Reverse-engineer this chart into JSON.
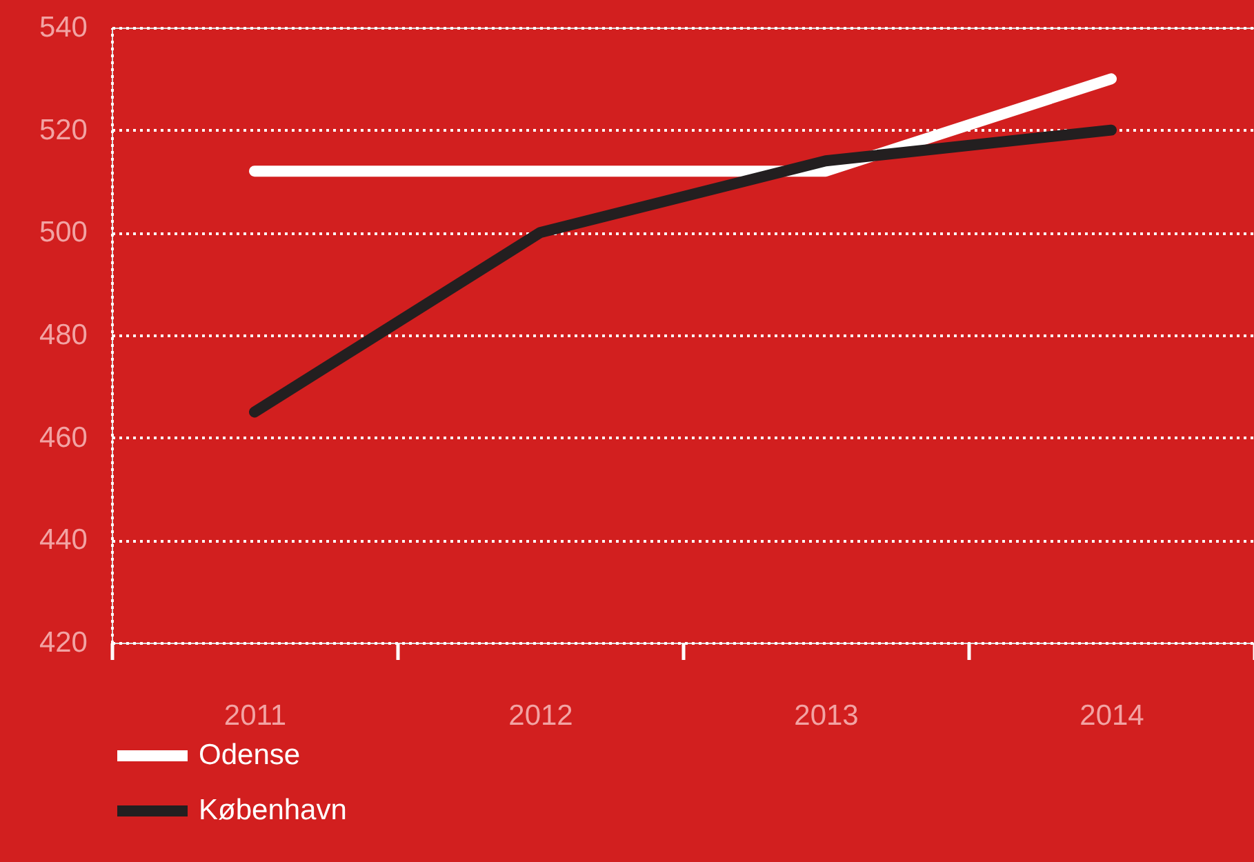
{
  "chart_data": {
    "type": "line",
    "categories": [
      "2011",
      "2012",
      "2013",
      "2014"
    ],
    "series": [
      {
        "name": "Odense",
        "color": "#ffffff",
        "values": [
          512,
          512,
          512,
          530
        ]
      },
      {
        "name": "København",
        "color": "#231f20",
        "values": [
          465,
          500,
          514,
          520
        ]
      }
    ],
    "ylim": [
      420,
      540
    ],
    "yticks": [
      420,
      440,
      460,
      480,
      500,
      520,
      540
    ],
    "grid": "y",
    "legend": "bottom",
    "line_style": "solid"
  }
}
